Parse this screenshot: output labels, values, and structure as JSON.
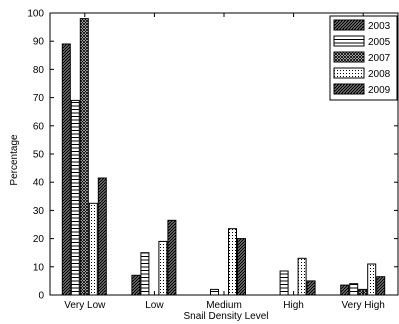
{
  "chart_data": {
    "type": "bar",
    "xlabel": "Snail Density Level",
    "ylabel": "Percentage",
    "categories": [
      "Very Low",
      "Low",
      "Medium",
      "High",
      "Very High"
    ],
    "ylim": [
      0,
      100
    ],
    "yticks": [
      0,
      10,
      20,
      30,
      40,
      50,
      60,
      70,
      80,
      90,
      100
    ],
    "legend_position": "top-right",
    "grid": false,
    "series": [
      {
        "name": "2003",
        "pattern": "diag-right",
        "values": [
          89,
          7,
          0,
          0,
          3.5
        ]
      },
      {
        "name": "2005",
        "pattern": "horizontal",
        "values": [
          69,
          15,
          2,
          8.5,
          4
        ]
      },
      {
        "name": "2007",
        "pattern": "crosshatch",
        "values": [
          98,
          0,
          0,
          0,
          2
        ]
      },
      {
        "name": "2008",
        "pattern": "dotted",
        "values": [
          32.5,
          19,
          23.5,
          13,
          11
        ]
      },
      {
        "name": "2009",
        "pattern": "diag-right",
        "values": [
          41.5,
          26.5,
          20,
          5,
          6.5
        ]
      }
    ]
  }
}
